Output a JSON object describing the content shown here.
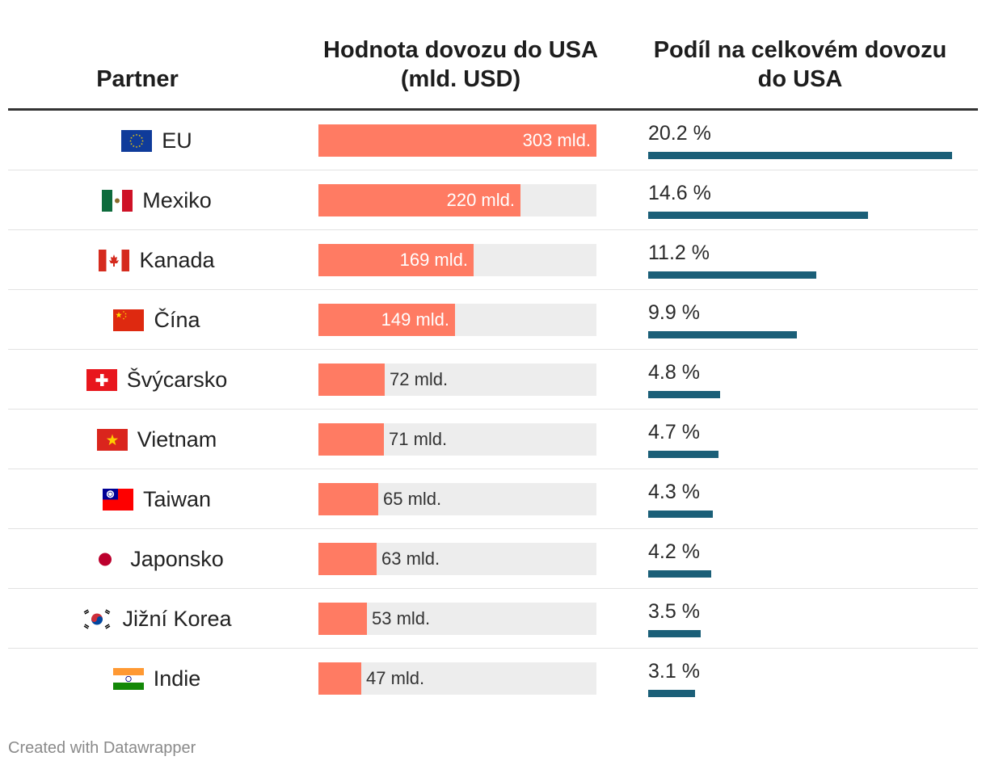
{
  "header": {
    "partner": "Partner",
    "value_line1": "Hodnota dovozu do USA",
    "value_line2": "(mld. USD)",
    "share_line1": "Podíl na celkovém dovozu",
    "share_line2": "do USA"
  },
  "chart_data": {
    "type": "table",
    "columns": [
      "Partner",
      "Hodnota dovozu do USA (mld. USD)",
      "Podíl na celkovém dovozu do USA"
    ],
    "value_max": 303,
    "share_max": 20.2,
    "rows": [
      {
        "flag": "eu-flag",
        "partner": "EU",
        "value": 303,
        "value_label": "303 mld.",
        "share": 20.2,
        "share_label": "20.2 %"
      },
      {
        "flag": "mexico-flag",
        "partner": "Mexiko",
        "value": 220,
        "value_label": "220 mld.",
        "share": 14.6,
        "share_label": "14.6 %"
      },
      {
        "flag": "canada-flag",
        "partner": "Kanada",
        "value": 169,
        "value_label": "169 mld.",
        "share": 11.2,
        "share_label": "11.2 %"
      },
      {
        "flag": "china-flag",
        "partner": "Čína",
        "value": 149,
        "value_label": "149 mld.",
        "share": 9.9,
        "share_label": "9.9 %"
      },
      {
        "flag": "switzerland-flag",
        "partner": "Švýcarsko",
        "value": 72,
        "value_label": "72 mld.",
        "share": 4.8,
        "share_label": "4.8 %"
      },
      {
        "flag": "vietnam-flag",
        "partner": "Vietnam",
        "value": 71,
        "value_label": "71 mld.",
        "share": 4.7,
        "share_label": "4.7 %"
      },
      {
        "flag": "taiwan-flag",
        "partner": "Taiwan",
        "value": 65,
        "value_label": "65 mld.",
        "share": 4.3,
        "share_label": "4.3 %"
      },
      {
        "flag": "japan-flag",
        "partner": "Japonsko",
        "value": 63,
        "value_label": "63 mld.",
        "share": 4.2,
        "share_label": "4.2 %"
      },
      {
        "flag": "south-korea-flag",
        "partner": "Jižní Korea",
        "value": 53,
        "value_label": "53 mld.",
        "share": 3.5,
        "share_label": "3.5 %"
      },
      {
        "flag": "india-flag",
        "partner": "Indie",
        "value": 47,
        "value_label": "47 mld.",
        "share": 3.1,
        "share_label": "3.1 %"
      }
    ]
  },
  "colors": {
    "value_bar": "#ff7b63",
    "value_track": "#ededed",
    "share_bar": "#1b5f78"
  },
  "footer": {
    "credit": "Created with Datawrapper"
  }
}
